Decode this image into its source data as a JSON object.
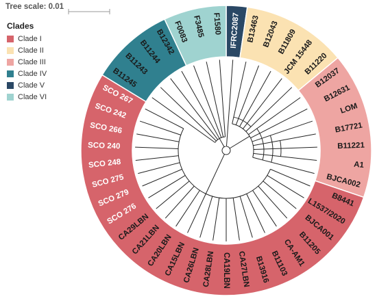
{
  "tree_scale": {
    "label": "Tree scale: 0.01"
  },
  "legend": {
    "title": "Clades",
    "items": [
      {
        "label": "Clade I",
        "color": "#d6646b"
      },
      {
        "label": "Clade II",
        "color": "#fbe2b2"
      },
      {
        "label": "Clade III",
        "color": "#eea5a2"
      },
      {
        "label": "Clade IV",
        "color": "#30808f"
      },
      {
        "label": "Clade V",
        "color": "#2a4865"
      },
      {
        "label": "Clade VI",
        "color": "#9fd3d0"
      }
    ]
  },
  "ring_sectors": [
    {
      "clade": "Clade V",
      "color": "#2a4865",
      "from": "IFRC2087",
      "to": "IFRC2087"
    },
    {
      "clade": "Clade II",
      "color": "#fbe2b2",
      "from": "B13463",
      "to": "B11220"
    },
    {
      "clade": "Clade III",
      "color": "#eea5a2",
      "from": "B12037",
      "to": "BJCA002"
    },
    {
      "clade": "Clade I",
      "color": "#d6646b",
      "from": "B8441",
      "to": "SCO 267"
    },
    {
      "clade": "Clade IV",
      "color": "#30808f",
      "from": "B11245",
      "to": "B12342"
    },
    {
      "clade": "Clade VI",
      "color": "#9fd3d0",
      "from": "F0083",
      "to": "F1580"
    }
  ],
  "leaves": [
    {
      "label": "IFRC2087",
      "color": "#ffffff"
    },
    {
      "label": "B13463",
      "color": "#1a1a1a"
    },
    {
      "label": "B12043",
      "color": "#1a1a1a"
    },
    {
      "label": "B11809",
      "color": "#1a1a1a"
    },
    {
      "label": "JCM 15448",
      "color": "#1a1a1a"
    },
    {
      "label": "B11220",
      "color": "#1a1a1a"
    },
    {
      "label": "B12037",
      "color": "#1a1a1a"
    },
    {
      "label": "B12631",
      "color": "#1a1a1a"
    },
    {
      "label": "LOM",
      "color": "#1a1a1a"
    },
    {
      "label": "B17721",
      "color": "#1a1a1a"
    },
    {
      "label": "B11221",
      "color": "#1a1a1a"
    },
    {
      "label": "A1",
      "color": "#1a1a1a"
    },
    {
      "label": "BJCA002",
      "color": "#1a1a1a"
    },
    {
      "label": "B8441",
      "color": "#1a1a1a"
    },
    {
      "label": "L1537/2020",
      "color": "#1a1a1a"
    },
    {
      "label": "BJCA001",
      "color": "#1a1a1a"
    },
    {
      "label": "B11205",
      "color": "#1a1a1a"
    },
    {
      "label": "CA-AM1",
      "color": "#1a1a1a"
    },
    {
      "label": "B11103",
      "color": "#1a1a1a"
    },
    {
      "label": "B13916",
      "color": "#1a1a1a"
    },
    {
      "label": "CA27LBN",
      "color": "#1a1a1a"
    },
    {
      "label": "CA19LBN",
      "color": "#1a1a1a"
    },
    {
      "label": "CA28LBN",
      "color": "#1a1a1a"
    },
    {
      "label": "CA26LBN",
      "color": "#1a1a1a"
    },
    {
      "label": "CA15LBN",
      "color": "#1a1a1a"
    },
    {
      "label": "CA20LBN",
      "color": "#1a1a1a"
    },
    {
      "label": "CA21LBN",
      "color": "#1a1a1a"
    },
    {
      "label": "CA29LBN",
      "color": "#1a1a1a"
    },
    {
      "label": "SCO 276",
      "color": "#ffffff"
    },
    {
      "label": "SCO 279",
      "color": "#ffffff"
    },
    {
      "label": "SCO 275",
      "color": "#ffffff"
    },
    {
      "label": "SCO 248",
      "color": "#ffffff"
    },
    {
      "label": "SCO 240",
      "color": "#ffffff"
    },
    {
      "label": "SCO 266",
      "color": "#ffffff"
    },
    {
      "label": "SCO 242",
      "color": "#ffffff"
    },
    {
      "label": "SCO 267",
      "color": "#ffffff"
    },
    {
      "label": "B11245",
      "color": "#1a1a1a"
    },
    {
      "label": "B11243",
      "color": "#1a1a1a"
    },
    {
      "label": "B11244",
      "color": "#1a1a1a"
    },
    {
      "label": "B12342",
      "color": "#1a1a1a"
    },
    {
      "label": "F0083",
      "color": "#1a1a1a"
    },
    {
      "label": "F3485",
      "color": "#1a1a1a"
    },
    {
      "label": "F1580",
      "color": "#1a1a1a"
    }
  ]
}
